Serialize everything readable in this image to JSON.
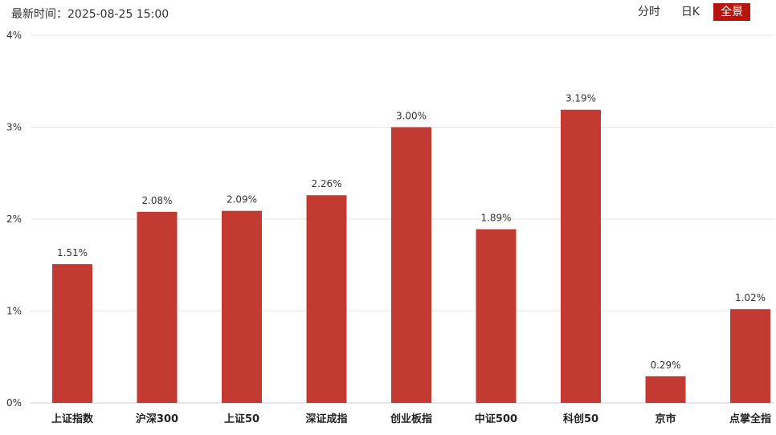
{
  "header": {
    "update_label": "最新时间：2025-08-25 15:00",
    "tabs": [
      {
        "label": "分时",
        "active": false
      },
      {
        "label": "日K",
        "active": false
      },
      {
        "label": "全景",
        "active": true
      }
    ]
  },
  "colors": {
    "bar": "#c23a31",
    "active_tab": "#b5150d",
    "grid": "#e6e6e6"
  },
  "chart_data": {
    "type": "bar",
    "categories": [
      "上证指数",
      "沪深300",
      "上证50",
      "深证成指",
      "创业板指",
      "中证500",
      "科创50",
      "京市",
      "点掌全指"
    ],
    "values": [
      1.51,
      2.08,
      2.09,
      2.26,
      3.0,
      1.89,
      3.19,
      0.29,
      1.02
    ],
    "value_labels": [
      "1.51%",
      "2.08%",
      "2.09%",
      "2.26%",
      "3.00%",
      "1.89%",
      "3.19%",
      "0.29%",
      "1.02%"
    ],
    "yticks": [
      0,
      1,
      2,
      3,
      4
    ],
    "ytick_labels": [
      "0%",
      "1%",
      "2%",
      "3%",
      "4%"
    ],
    "ylim": [
      0,
      4
    ],
    "grid": true,
    "title": "",
    "xlabel": "",
    "ylabel": ""
  }
}
